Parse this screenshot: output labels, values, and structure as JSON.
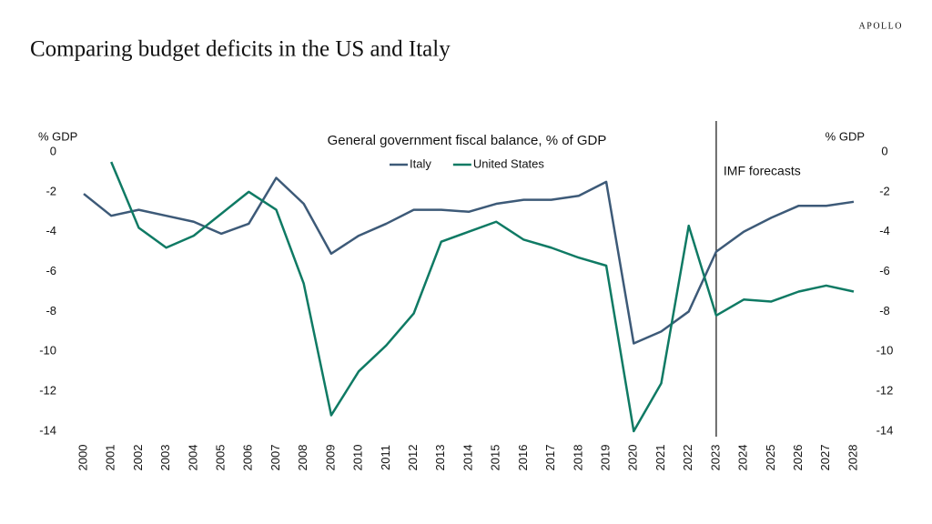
{
  "brand": "APOLLO",
  "title": "Comparing budget deficits in the US and Italy",
  "chart_data": {
    "type": "line",
    "subtitle": "General government fiscal balance, % of GDP",
    "ylabel": "% GDP",
    "y2label": "% GDP",
    "x": [
      2000,
      2001,
      2002,
      2003,
      2004,
      2005,
      2006,
      2007,
      2008,
      2009,
      2010,
      2011,
      2012,
      2013,
      2014,
      2015,
      2016,
      2017,
      2018,
      2019,
      2020,
      2021,
      2022,
      2023,
      2024,
      2025,
      2026,
      2027,
      2028
    ],
    "xlim": [
      2000,
      2028
    ],
    "xticks": [
      2000,
      2001,
      2002,
      2003,
      2004,
      2005,
      2006,
      2007,
      2008,
      2009,
      2010,
      2011,
      2012,
      2013,
      2014,
      2015,
      2016,
      2017,
      2018,
      2019,
      2020,
      2021,
      2022,
      2023,
      2024,
      2025,
      2026,
      2027,
      2028
    ],
    "ylim": [
      -14,
      0
    ],
    "yticks": [
      0,
      -2,
      -4,
      -6,
      -8,
      -10,
      -12,
      -14
    ],
    "y2lim": [
      -14,
      0
    ],
    "y2ticks": [
      0,
      -2,
      -4,
      -6,
      -8,
      -10,
      -12,
      -14
    ],
    "grid": false,
    "legend": "top",
    "annotation": {
      "text": "IMF forecasts",
      "x": 2023
    },
    "series": [
      {
        "name": "Italy",
        "color": "#3d5a78",
        "values": [
          -2.1,
          -3.2,
          -2.9,
          -3.2,
          -3.5,
          -4.1,
          -3.6,
          -1.3,
          -2.6,
          -5.1,
          -4.2,
          -3.6,
          -2.9,
          -2.9,
          -3.0,
          -2.6,
          -2.4,
          -2.4,
          -2.2,
          -1.5,
          -9.6,
          -9.0,
          -8.0,
          -5.0,
          -4.0,
          -3.3,
          -2.7,
          -2.7,
          -2.5
        ]
      },
      {
        "name": "United States",
        "color": "#0f7a64",
        "values": [
          null,
          -0.5,
          -3.8,
          -4.8,
          -4.2,
          -3.1,
          -2.0,
          -2.9,
          -6.6,
          -13.2,
          -11.0,
          -9.7,
          -8.1,
          -4.5,
          -4.0,
          -3.5,
          -4.4,
          -4.8,
          -5.3,
          -5.7,
          -14.0,
          -11.6,
          -3.7,
          -8.2,
          -7.4,
          -7.5,
          -7.0,
          -6.7,
          -7.0
        ]
      }
    ]
  }
}
